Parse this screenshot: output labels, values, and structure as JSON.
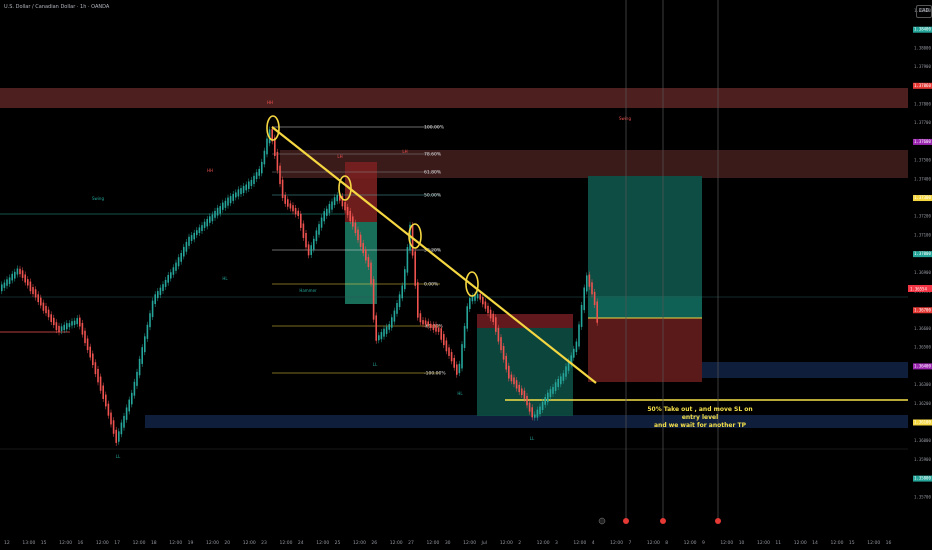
{
  "header": {
    "title": "U.S. Dollar / Canadian Dollar · 1h · OANDA",
    "currency_button": "CAD"
  },
  "annotation": {
    "line1": "50% Take out , and move SL on entry level",
    "line2": "and we wait for another TP"
  },
  "fib_labels": [
    "100.00%",
    "78.60%",
    "61.80%",
    "50.00%",
    "38.20%",
    "0.00%",
    "-61.80%",
    "-100.00%"
  ],
  "price_axis": {
    "labels": [
      "1.38500",
      "1.38400",
      "1.38000",
      "1.37900",
      "1.37860",
      "1.37800",
      "1.37700",
      "1.37600",
      "1.37500",
      "1.37400",
      "1.37300",
      "1.37200",
      "1.37100",
      "1.37000",
      "1.36900",
      "1.36800",
      "1.36700",
      "1.36600",
      "1.36500",
      "1.36400",
      "1.36300",
      "1.36200",
      "1.36100",
      "1.36000",
      "1.35900",
      "1.35800",
      "1.35700"
    ],
    "highlight": {
      "value": "1.36554",
      "color": "#f23645"
    }
  },
  "time_axis": {
    "labels": [
      "12",
      "13:00",
      "15",
      "12:00",
      "16",
      "12:00",
      "17",
      "12:00",
      "18",
      "12:00",
      "19",
      "12:00",
      "20",
      "12:00",
      "23",
      "12:00",
      "24",
      "12:00",
      "25",
      "12:00",
      "26",
      "12:00",
      "27",
      "12:00",
      "30",
      "12:00",
      "Jul",
      "12:00",
      "2",
      "12:00",
      "3",
      "12:00",
      "4",
      "12:00",
      "7",
      "12:00",
      "8",
      "12:00",
      "9",
      "12:00",
      "10",
      "12:00",
      "11",
      "12:00",
      "14",
      "12:00",
      "15",
      "12:00",
      "16"
    ]
  },
  "markers": [
    "HH",
    "HL",
    "LL",
    "LH",
    "Swing",
    "Hammer"
  ],
  "colors": {
    "up": "#26a69a",
    "down": "#ef5350",
    "trend": "#f5d742",
    "zone_red": "#5a1f1f",
    "zone_blue": "#0f1e3a"
  }
}
